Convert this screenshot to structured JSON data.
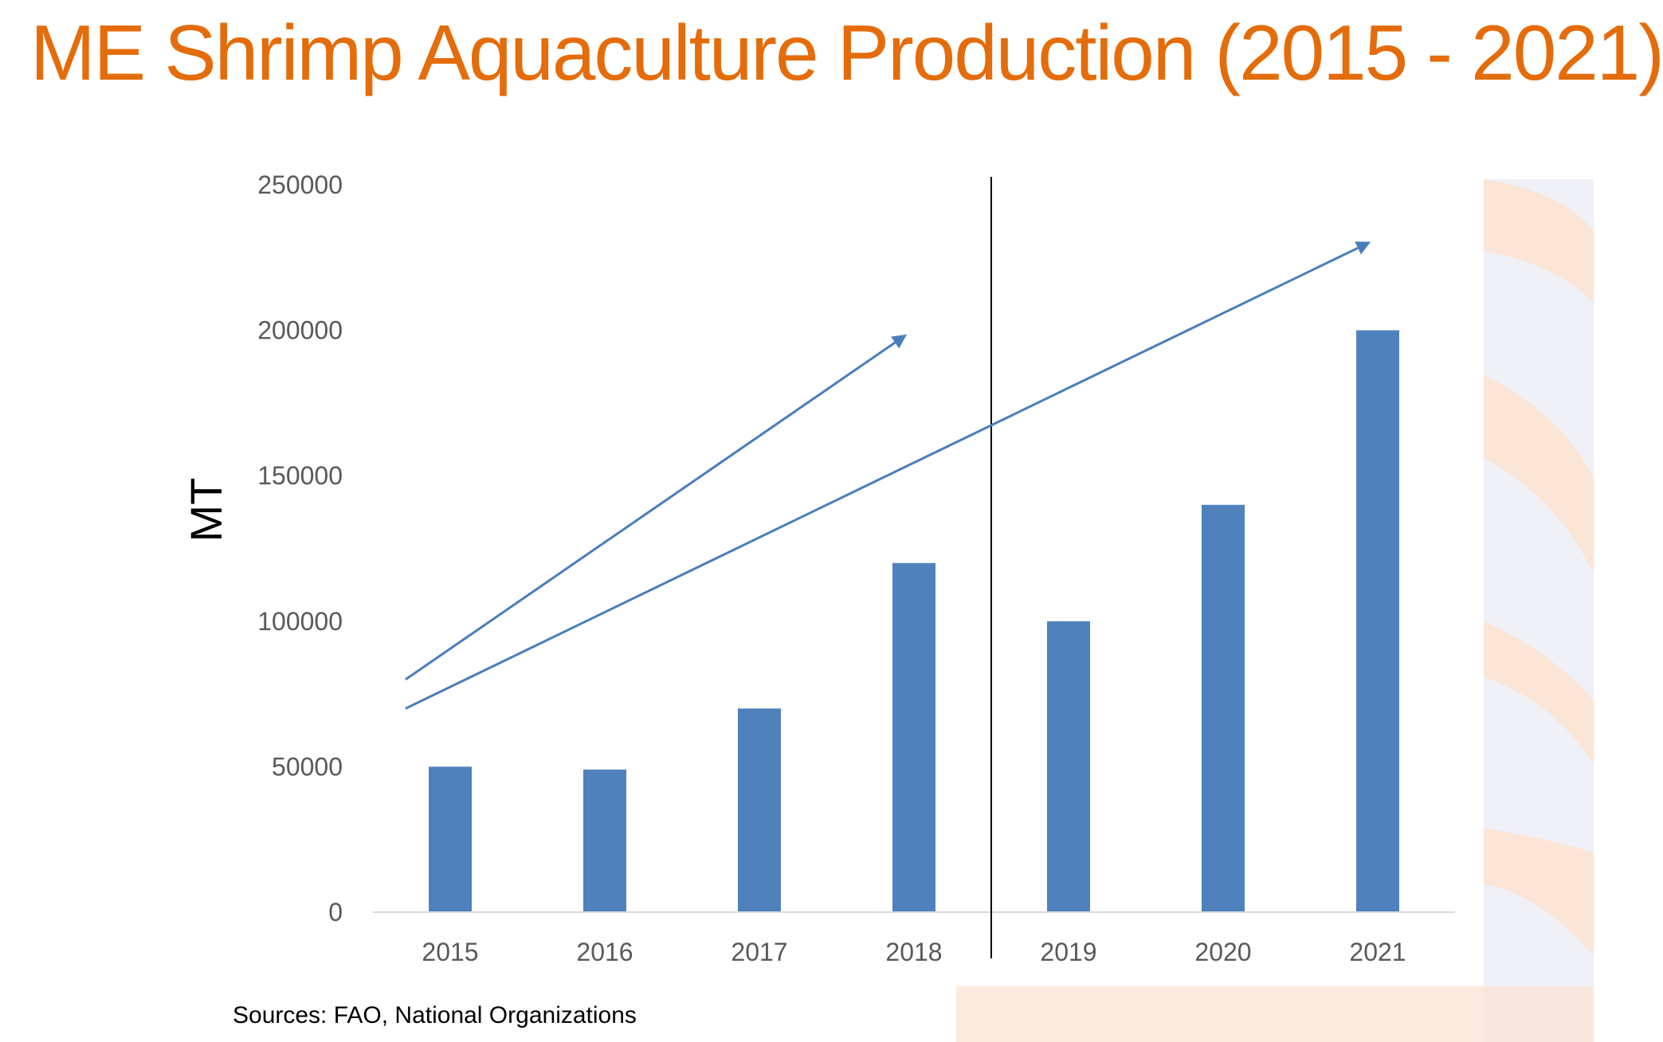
{
  "slide": {
    "title": "ME Shrimp Aquaculture Production (2015 - 2021)",
    "source": "Sources: FAO, National Organizations",
    "title_color": "#E46C0A"
  },
  "colors": {
    "bar": "#4F81BD",
    "arrow": "#4A7EBB",
    "divider": "#000000",
    "axis_text": "#595959",
    "axis_line": "#D9D9D9",
    "decor_orange": "#FBE5D6",
    "decor_blue": "#E6E6F2"
  },
  "chart_data": {
    "type": "bar",
    "title": "",
    "xlabel": "",
    "ylabel": "MT",
    "categories": [
      "2015",
      "2016",
      "2017",
      "2018",
      "2019",
      "2020",
      "2021"
    ],
    "series": [
      {
        "values": [
          50000,
          49000,
          70000,
          120000,
          100000,
          140000,
          200000
        ]
      }
    ],
    "ylim": [
      0,
      250000
    ],
    "yticks": [
      0,
      50000,
      100000,
      150000,
      200000,
      250000
    ],
    "grid": false,
    "legend": "none",
    "divider_between": [
      "2018",
      "2019"
    ],
    "trend_arrows": [
      {
        "from": [
          "2015",
          80000
        ],
        "to": [
          "2018",
          198000
        ]
      },
      {
        "from": [
          "2015",
          70000
        ],
        "to": [
          "2021",
          230000
        ]
      }
    ]
  }
}
